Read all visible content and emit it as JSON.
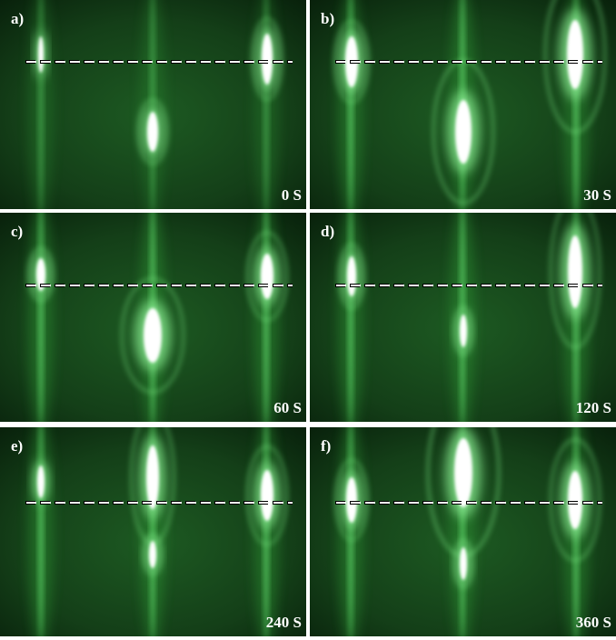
{
  "panels": [
    {
      "label": "a)",
      "time": "0 S"
    },
    {
      "label": "b)",
      "time": "30 S"
    },
    {
      "label": "c)",
      "time": "60 S"
    },
    {
      "label": "d)",
      "time": "120 S"
    },
    {
      "label": "e)",
      "time": "240 S"
    },
    {
      "label": "f)",
      "time": "360 S"
    }
  ]
}
